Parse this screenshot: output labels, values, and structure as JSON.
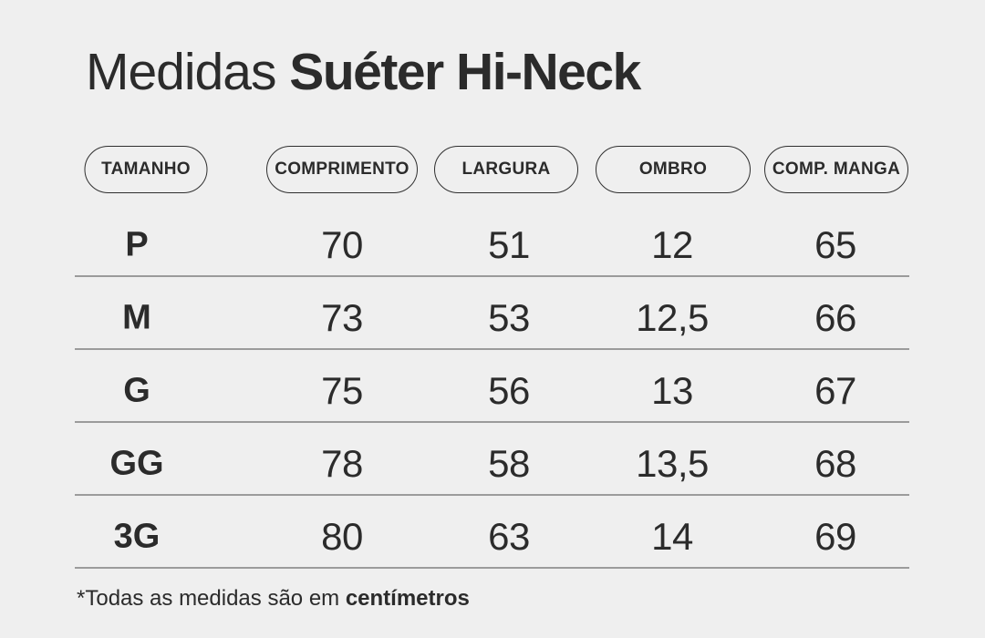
{
  "page": {
    "background_color": "#efefef",
    "text_color": "#2b2b2b",
    "divider_color": "#9b9b9b",
    "pill_border_color": "#2f2f2f"
  },
  "header": {
    "title_regular": "Medidas ",
    "title_bold": "Suéter Hi-Neck"
  },
  "chart_data": {
    "type": "table",
    "title": "Medidas Suéter Hi-Neck",
    "columns": [
      "TAMANHO",
      "COMPRIMENTO",
      "LARGURA",
      "OMBRO",
      "COMP. MANGA"
    ],
    "rows": [
      [
        "P",
        "70",
        "51",
        "12",
        "65"
      ],
      [
        "M",
        "73",
        "53",
        "12,5",
        "66"
      ],
      [
        "G",
        "75",
        "56",
        "13",
        "67"
      ],
      [
        "GG",
        "78",
        "58",
        "13,5",
        "68"
      ],
      [
        "3G",
        "80",
        "63",
        "14",
        "69"
      ]
    ],
    "units": "centímetros"
  },
  "footnote": {
    "regular": "*Todas as medidas são em ",
    "bold": "centímetros"
  }
}
